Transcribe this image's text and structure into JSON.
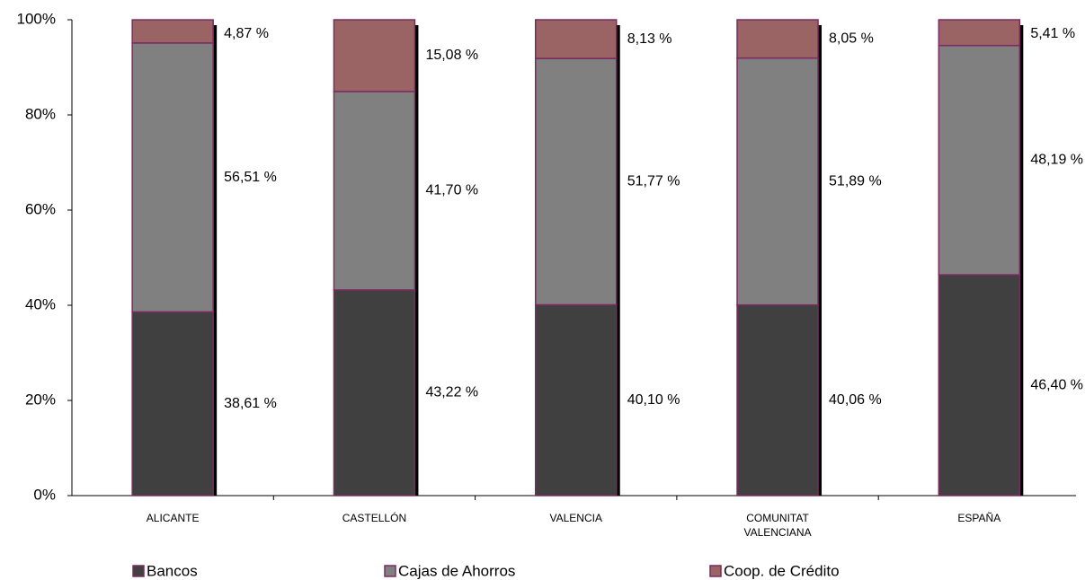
{
  "chart_data": {
    "type": "stacked_bar_100",
    "categories": [
      "ALICANTE",
      "CASTELLÓN",
      "VALENCIA",
      "COMUNITAT VALENCIANA",
      "ESPAÑA"
    ],
    "series": [
      {
        "name": "Bancos",
        "color": "#404040",
        "values": [
          38.61,
          43.22,
          40.1,
          40.06,
          46.4
        ],
        "value_labels": [
          "38,61 %",
          "43,22 %",
          "40,10 %",
          "40,06 %",
          "46,40 %"
        ]
      },
      {
        "name": "Cajas de Ahorros",
        "color": "#808080",
        "values": [
          56.51,
          41.7,
          51.77,
          51.89,
          48.19
        ],
        "value_labels": [
          "56,51 %",
          "41,70 %",
          "51,77 %",
          "51,89 %",
          "48,19 %"
        ]
      },
      {
        "name": "Coop. de Crédito",
        "color": "#9b6464",
        "values": [
          4.87,
          15.08,
          8.13,
          8.05,
          5.41
        ],
        "value_labels": [
          "4,87 %",
          "15,08 %",
          "8,13 %",
          "8,05 %",
          "5,41 %"
        ]
      }
    ],
    "ylim": [
      0,
      100
    ],
    "yticks": [
      {
        "value": 0,
        "label": "0%"
      },
      {
        "value": 20,
        "label": "20%"
      },
      {
        "value": 40,
        "label": "40%"
      },
      {
        "value": 60,
        "label": "60%"
      },
      {
        "value": 80,
        "label": "80%"
      },
      {
        "value": 100,
        "label": "100%"
      }
    ],
    "edge_color": "#7b2a62"
  }
}
